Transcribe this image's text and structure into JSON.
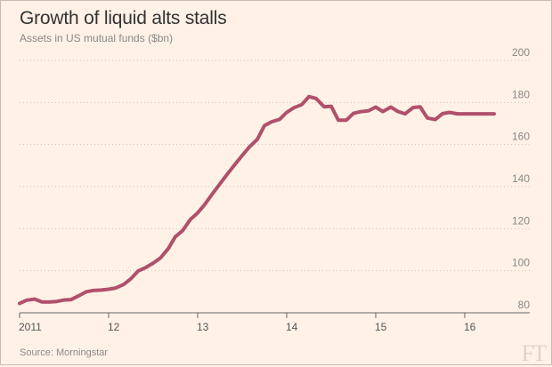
{
  "header": {
    "title": "Growth of liquid alts stalls",
    "subtitle": "Assets in US mutual funds ($bn)"
  },
  "footer": {
    "source": "Source: Morningstar",
    "logo": "FT"
  },
  "colors": {
    "background": "#fff1e5",
    "series": "#b0506b"
  },
  "chart_data": {
    "type": "line",
    "title": "Growth of liquid alts stalls",
    "subtitle": "Assets in US mutual funds ($bn)",
    "ylim": [
      80,
      200
    ],
    "yticks": [
      80,
      100,
      120,
      140,
      160,
      180,
      200
    ],
    "xlim": [
      2011.0,
      2016.43
    ],
    "xticks": [
      {
        "value": 2011,
        "label": "2011"
      },
      {
        "value": 2012,
        "label": "12"
      },
      {
        "value": 2013,
        "label": "13"
      },
      {
        "value": 2014,
        "label": "14"
      },
      {
        "value": 2015,
        "label": "15"
      },
      {
        "value": 2016,
        "label": "16"
      }
    ],
    "grid": true,
    "series": [
      {
        "x": [
          2011.0,
          2011.08,
          2011.17,
          2011.25,
          2011.33,
          2011.42,
          2011.5,
          2011.58,
          2011.67,
          2011.75,
          2011.83,
          2011.92,
          2012.0,
          2012.08,
          2012.17,
          2012.25,
          2012.33,
          2012.42,
          2012.5,
          2012.58,
          2012.67,
          2012.75,
          2012.83,
          2012.92,
          2013.0,
          2013.08,
          2013.17,
          2013.25,
          2013.33,
          2013.42,
          2013.5,
          2013.58,
          2013.67,
          2013.75,
          2013.83,
          2013.92,
          2014.0,
          2014.08,
          2014.17,
          2014.25,
          2014.33,
          2014.42,
          2014.5,
          2014.58,
          2014.67,
          2014.75,
          2014.83,
          2014.92,
          2015.0,
          2015.08,
          2015.17,
          2015.25,
          2015.33,
          2015.42,
          2015.5,
          2015.58,
          2015.67,
          2015.75,
          2015.83,
          2015.92,
          2016.0,
          2016.08,
          2016.17,
          2016.25,
          2016.33
        ],
        "y": [
          84.5,
          86,
          86.5,
          85.2,
          85.1,
          85.4,
          86.1,
          86.3,
          88.2,
          90,
          90.6,
          90.8,
          91.2,
          91.8,
          93.5,
          96.2,
          99.8,
          101.6,
          103.6,
          106,
          110.5,
          116.2,
          119,
          124.5,
          127.5,
          131.5,
          136.8,
          141.3,
          145.8,
          150.6,
          154.8,
          158.8,
          162.5,
          169,
          170.8,
          172,
          175.3,
          177.5,
          179,
          182.8,
          181.9,
          178,
          178.2,
          171.6,
          171.6,
          174.8,
          175.6,
          176.1,
          177.8,
          175.7,
          177.8,
          175.7,
          174.6,
          177.6,
          177.9,
          172.6,
          171.9,
          174.7,
          175.3,
          174.6,
          174.6,
          174.6,
          174.6,
          174.6,
          174.6
        ]
      }
    ]
  }
}
